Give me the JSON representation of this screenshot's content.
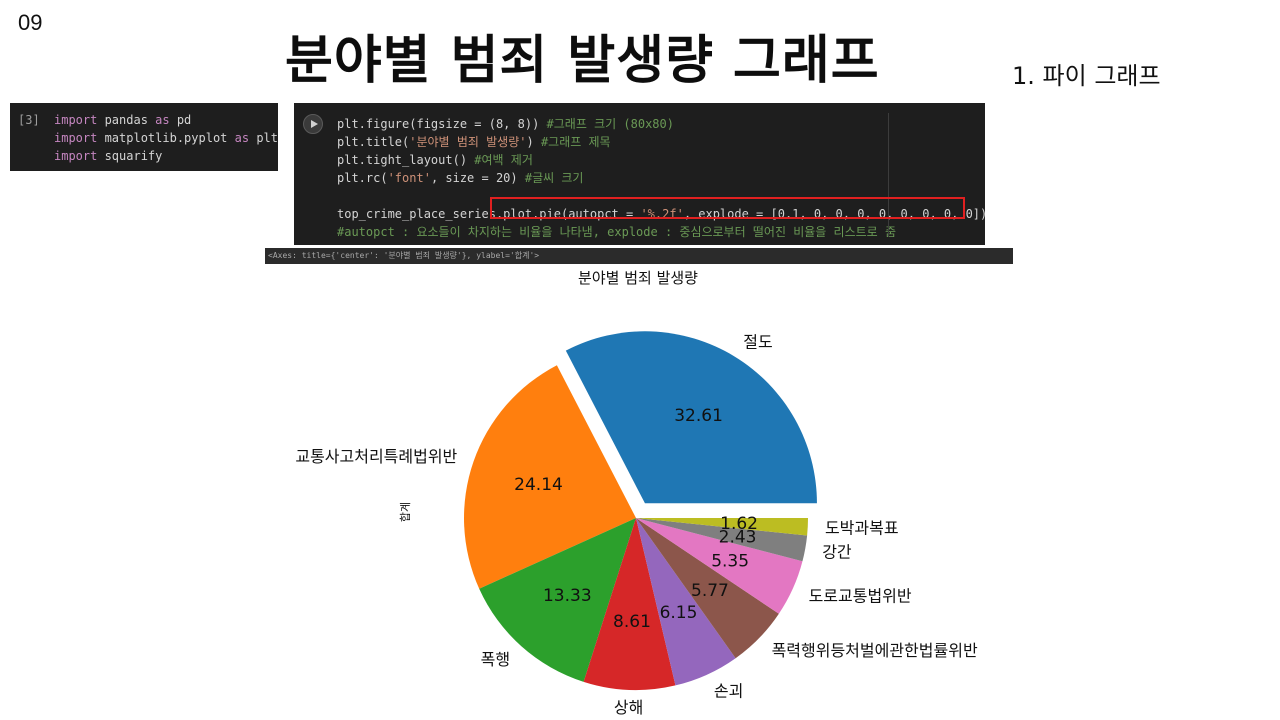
{
  "slide": {
    "number": "09",
    "title": "분야별 범죄 발생량 그래프",
    "subtitle": "1. 파이 그래프"
  },
  "cell_import": {
    "prompt": "[3]",
    "lines": [
      {
        "kw": "import",
        "rest": " pandas ",
        "kw2": "as",
        "rest2": " pd"
      },
      {
        "kw": "import",
        "rest": " matplotlib.pyplot ",
        "kw2": "as",
        "rest2": " plt"
      },
      {
        "kw": "import",
        "rest": " squarify",
        "kw2": "",
        "rest2": ""
      }
    ]
  },
  "cell_main": {
    "line1_code": "plt.figure(figsize = (8, 8)) ",
    "line1_comment": "#그래프 크기 (80x80)",
    "line2_pre": "plt.title(",
    "line2_str": "'분야별 범죄 발생량'",
    "line2_post": ") ",
    "line2_comment": "#그래프 제목",
    "line3_code": "plt.tight_layout() ",
    "line3_comment": "#여백 제거",
    "line4_pre": "plt.rc(",
    "line4_str": "'font'",
    "line4_post": ", size = 20) ",
    "line4_comment": "#글씨 크기",
    "line5_a": "top_crime_place_series",
    "line5_b": ".plot.pie(autopct = ",
    "line5_str": "'%.2f'",
    "line5_c": ", explode = [0.1, 0, 0, 0, 0, 0, 0, 0, 0])",
    "line6_comment": "#autopct : 요소들이 차지하는 비율을 나타냄, explode : 중심으로부터 떨어진 비율을 리스트로 줌"
  },
  "output_text": "<Axes: title={'center': '분야별 범죄 발생량'}, ylabel='합계'>",
  "chart_data": {
    "type": "pie",
    "title": "분야별 범죄 발생량",
    "ylabel": "합계",
    "start_angle_deg": 0,
    "direction": "counterclockwise",
    "slices": [
      {
        "label": "절도",
        "value": 32.61,
        "pct_text": "32.61",
        "color": "#1f77b4",
        "explode": 0.1
      },
      {
        "label": "교통사고처리특례법위반",
        "value": 24.14,
        "pct_text": "24.14",
        "color": "#ff7f0e",
        "explode": 0
      },
      {
        "label": "폭행",
        "value": 13.33,
        "pct_text": "13.33",
        "color": "#2ca02c",
        "explode": 0
      },
      {
        "label": "상해",
        "value": 8.61,
        "pct_text": "8.61",
        "color": "#d62728",
        "explode": 0
      },
      {
        "label": "손괴",
        "value": 6.15,
        "pct_text": "6.15",
        "color": "#9467bd",
        "explode": 0
      },
      {
        "label": "폭력행위등처벌에관한법률위반",
        "value": 5.77,
        "pct_text": "5.77",
        "color": "#8c564b",
        "explode": 0
      },
      {
        "label": "도로교통법위반",
        "value": 5.35,
        "pct_text": "5.35",
        "color": "#e377c2",
        "explode": 0
      },
      {
        "label": "강간",
        "value": 2.43,
        "pct_text": "2.43",
        "color": "#7f7f7f",
        "explode": 0
      },
      {
        "label": "도박과복표",
        "value": 1.62,
        "pct_text": "1.62",
        "color": "#bcbd22",
        "explode": 0
      }
    ]
  }
}
